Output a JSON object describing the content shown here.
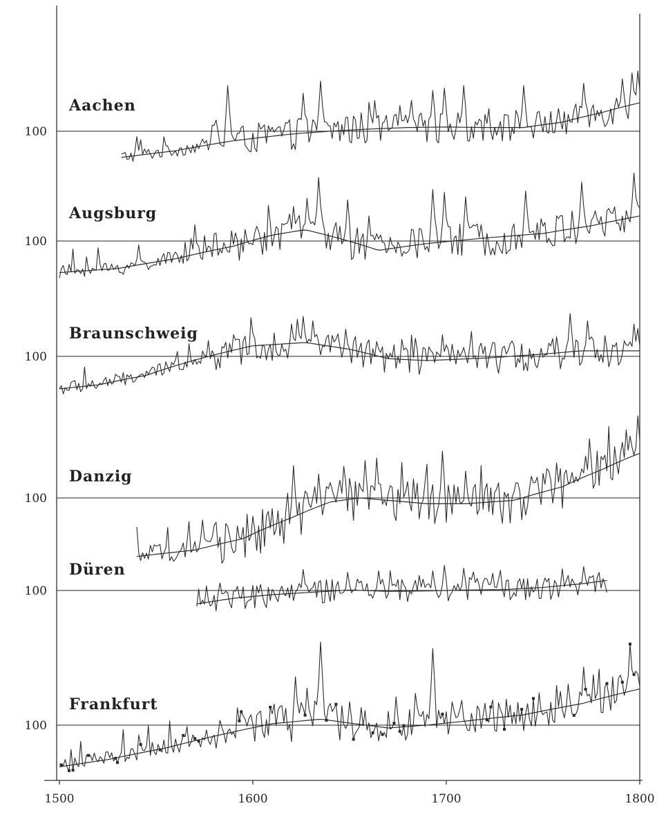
{
  "chart_data": {
    "type": "line",
    "title": "",
    "xlabel": "",
    "ylabel": "",
    "xlim": [
      1500,
      1800
    ],
    "x_ticks": [
      "1500",
      "1600",
      "1700",
      "1800"
    ],
    "baseline_label": "100",
    "panels": [
      {
        "name": "Aachen",
        "x_start": 1532,
        "x_end": 1800,
        "trend_points": [
          [
            1532,
            62
          ],
          [
            1560,
            70
          ],
          [
            1590,
            84
          ],
          [
            1620,
            95
          ],
          [
            1640,
            100
          ],
          [
            1660,
            104
          ],
          [
            1680,
            107
          ],
          [
            1700,
            108
          ],
          [
            1720,
            107
          ],
          [
            1740,
            107
          ],
          [
            1760,
            118
          ],
          [
            1780,
            140
          ],
          [
            1800,
            168
          ]
        ],
        "spikes": [
          [
            1587,
            230
          ],
          [
            1626,
            200
          ],
          [
            1635,
            250
          ],
          [
            1663,
            175
          ],
          [
            1676,
            160
          ],
          [
            1693,
            210
          ],
          [
            1699,
            220
          ],
          [
            1709,
            230
          ],
          [
            1740,
            230
          ],
          [
            1771,
            240
          ],
          [
            1791,
            260
          ],
          [
            1796,
            290
          ],
          [
            1799,
            300
          ]
        ]
      },
      {
        "name": "Augsburg",
        "x_start": 1500,
        "x_end": 1800,
        "trend_points": [
          [
            1500,
            60
          ],
          [
            1530,
            64
          ],
          [
            1560,
            75
          ],
          [
            1590,
            92
          ],
          [
            1610,
            110
          ],
          [
            1627,
            120
          ],
          [
            1645,
            104
          ],
          [
            1665,
            86
          ],
          [
            1690,
            96
          ],
          [
            1720,
            105
          ],
          [
            1750,
            113
          ],
          [
            1775,
            128
          ],
          [
            1800,
            150
          ]
        ],
        "spikes": [
          [
            1570,
            130
          ],
          [
            1621,
            175
          ],
          [
            1628,
            200
          ],
          [
            1634,
            280
          ],
          [
            1649,
            195
          ],
          [
            1660,
            150
          ],
          [
            1693,
            230
          ],
          [
            1699,
            220
          ],
          [
            1710,
            205
          ],
          [
            1741,
            225
          ],
          [
            1770,
            260
          ],
          [
            1797,
            300
          ]
        ]
      },
      {
        "name": "Braunschweig",
        "x_start": 1500,
        "x_end": 1800,
        "trend_points": [
          [
            1500,
            57
          ],
          [
            1520,
            61
          ],
          [
            1545,
            72
          ],
          [
            1575,
            98
          ],
          [
            1600,
            120
          ],
          [
            1627,
            127
          ],
          [
            1650,
            113
          ],
          [
            1670,
            96
          ],
          [
            1690,
            93
          ],
          [
            1720,
            97
          ],
          [
            1750,
            104
          ],
          [
            1770,
            110
          ],
          [
            1800,
            110
          ]
        ],
        "spikes": [
          [
            1588,
            125
          ],
          [
            1620,
            175
          ],
          [
            1623,
            190
          ],
          [
            1626,
            200
          ],
          [
            1631,
            185
          ],
          [
            1648,
            160
          ],
          [
            1675,
            100
          ],
          [
            1698,
            145
          ],
          [
            1757,
            140
          ],
          [
            1764,
            210
          ],
          [
            1773,
            185
          ],
          [
            1797,
            175
          ]
        ]
      },
      {
        "name": "Danzig",
        "x_start": 1540,
        "x_end": 1800,
        "trend_points": [
          [
            1540,
            48
          ],
          [
            1570,
            52
          ],
          [
            1595,
            60
          ],
          [
            1620,
            78
          ],
          [
            1640,
            95
          ],
          [
            1655,
            100
          ],
          [
            1670,
            97
          ],
          [
            1690,
            93
          ],
          [
            1710,
            93
          ],
          [
            1735,
            97
          ],
          [
            1760,
            115
          ],
          [
            1780,
            142
          ],
          [
            1800,
            175
          ]
        ],
        "spikes": [
          [
            1621,
            150
          ],
          [
            1634,
            135
          ],
          [
            1658,
            160
          ],
          [
            1664,
            165
          ],
          [
            1698,
            180
          ],
          [
            1710,
            140
          ],
          [
            1757,
            155
          ],
          [
            1774,
            210
          ],
          [
            1793,
            235
          ],
          [
            1799,
            280
          ]
        ]
      },
      {
        "name": "Düren",
        "x_start": 1571,
        "x_end": 1783,
        "trend_points": [
          [
            1571,
            74
          ],
          [
            1590,
            84
          ],
          [
            1610,
            91
          ],
          [
            1630,
            96
          ],
          [
            1650,
            101
          ],
          [
            1670,
            98
          ],
          [
            1690,
            99
          ],
          [
            1710,
            101
          ],
          [
            1730,
            102
          ],
          [
            1750,
            107
          ],
          [
            1770,
            116
          ],
          [
            1783,
            125
          ]
        ],
        "spikes": [
          [
            1626,
            160
          ],
          [
            1649,
            150
          ],
          [
            1665,
            155
          ],
          [
            1686,
            140
          ],
          [
            1693,
            155
          ],
          [
            1699,
            175
          ],
          [
            1709,
            165
          ],
          [
            1771,
            170
          ],
          [
            1781,
            130
          ]
        ]
      },
      {
        "name": "Frankfurt",
        "x_start": 1500,
        "x_end": 1800,
        "trend_points": [
          [
            1500,
            55
          ],
          [
            1525,
            61
          ],
          [
            1555,
            72
          ],
          [
            1585,
            88
          ],
          [
            1610,
            102
          ],
          [
            1635,
            109
          ],
          [
            1650,
            103
          ],
          [
            1670,
            96
          ],
          [
            1690,
            100
          ],
          [
            1710,
            106
          ],
          [
            1740,
            116
          ],
          [
            1770,
            136
          ],
          [
            1800,
            168
          ]
        ],
        "spikes": [
          [
            1622,
            200
          ],
          [
            1628,
            170
          ],
          [
            1635,
            330
          ],
          [
            1650,
            140
          ],
          [
            1674,
            150
          ],
          [
            1693,
            300
          ],
          [
            1763,
            180
          ],
          [
            1771,
            230
          ],
          [
            1795,
            320
          ]
        ]
      }
    ]
  }
}
